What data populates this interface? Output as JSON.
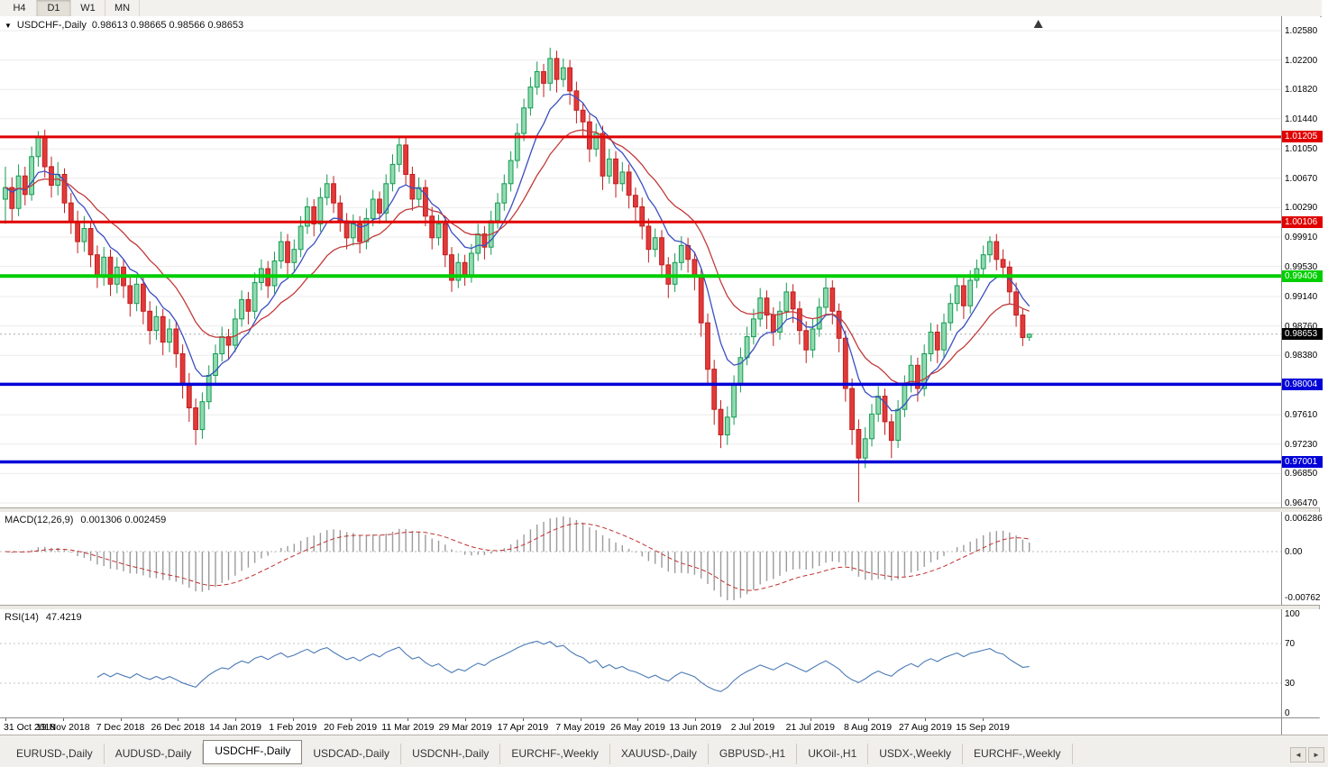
{
  "toolbar": {
    "timeframes": [
      "H4",
      "D1",
      "W1",
      "MN"
    ],
    "active": "D1"
  },
  "icons": {
    "dropdown": "▼",
    "tab_scroll_left": "◄",
    "tab_scroll_right": "►"
  },
  "tab_bar": {
    "items": [
      "EURUSD-,Daily",
      "AUDUSD-,Daily",
      "USDCHF-,Daily",
      "USDCAD-,Daily",
      "USDCNH-,Daily",
      "EURCHF-,Weekly",
      "XAUUSD-,Daily",
      "GBPUSD-,H1",
      "UKOil-,H1",
      "USDX-,Weekly",
      "EURCHF-,Weekly"
    ],
    "active_index": 2
  },
  "chart_data": {
    "type": "candlestick",
    "title": "USDCHF-,Daily",
    "symbol": "USDCHF-,Daily",
    "ohlc_text": "0.98613 0.98665 0.98566 0.98653",
    "current_price": "0.98653",
    "y_axis": {
      "min": 0.9647,
      "max": 1.0258,
      "ticks": [
        "1.02580",
        "1.02200",
        "1.01820",
        "1.01440",
        "1.01050",
        "1.00670",
        "1.00290",
        "0.99910",
        "0.99530",
        "0.99140",
        "0.98760",
        "0.98380",
        "0.97610",
        "0.97230",
        "0.96850",
        "0.96470"
      ]
    },
    "x_labels": [
      "31 Oct 2018",
      "19 Nov 2018",
      "7 Dec 2018",
      "26 Dec 2018",
      "14 Jan 2019",
      "1 Feb 2019",
      "20 Feb 2019",
      "11 Mar 2019",
      "29 Mar 2019",
      "17 Apr 2019",
      "7 May 2019",
      "26 May 2019",
      "13 Jun 2019",
      "2 Jul 2019",
      "21 Jul 2019",
      "8 Aug 2019",
      "27 Aug 2019",
      "15 Sep 2019"
    ],
    "hlines": [
      {
        "price": "1.01205",
        "color": "#e00000",
        "width": 3
      },
      {
        "price": "1.00106",
        "color": "#e00000",
        "width": 3
      },
      {
        "price": "0.99406",
        "color": "#00ce00",
        "width": 4
      },
      {
        "price": "0.98004",
        "color": "#0000d8",
        "width": 3.5
      },
      {
        "price": "0.97001",
        "color": "#0000d8",
        "width": 3.5
      }
    ],
    "colors": {
      "up_fill": "#90dab0",
      "up_stroke": "#149b52",
      "down_fill": "#e23a3a",
      "down_stroke": "#c21d1d",
      "ma_fast": "#3a4fc0",
      "ma_slow": "#c23a3a",
      "macd_hist": "#9b9b9b",
      "macd_signal": "#c03030",
      "rsi": "#4a7ab5"
    },
    "indicators": {
      "macd": {
        "label": "MACD(12,26,9)",
        "values_text": "0.001306 0.002459",
        "params": [
          12,
          26,
          9
        ],
        "axis": [
          "0.006286",
          "0.00",
          "-0.00762"
        ]
      },
      "rsi": {
        "label": "RSI(14)",
        "value_text": "47.4219",
        "period": 14,
        "axis": [
          "100",
          "70",
          "30",
          "0"
        ],
        "levels": [
          70,
          30
        ]
      }
    },
    "candles": [
      [
        1.004,
        1.0082,
        1.0008,
        1.0055
      ],
      [
        1.0055,
        1.0068,
        1.0012,
        1.0028
      ],
      [
        1.0028,
        1.0085,
        1.0018,
        1.007
      ],
      [
        1.007,
        1.0082,
        1.0032,
        1.0046
      ],
      [
        1.0046,
        1.0108,
        1.0038,
        1.0095
      ],
      [
        1.0095,
        1.0128,
        1.0082,
        1.012
      ],
      [
        1.012,
        1.013,
        1.0068,
        1.0082
      ],
      [
        1.0082,
        1.0095,
        1.0042,
        1.0058
      ],
      [
        1.0058,
        1.0088,
        1.0045,
        1.0072
      ],
      [
        1.0072,
        1.008,
        1.0022,
        1.0035
      ],
      [
        1.0035,
        1.0048,
        0.9995,
        1.001
      ],
      [
        1.001,
        1.0025,
        0.997,
        0.9985
      ],
      [
        0.9985,
        1.0018,
        0.9972,
        1.0002
      ],
      [
        1.0002,
        1.0012,
        0.9952,
        0.9968
      ],
      [
        0.9968,
        0.998,
        0.9925,
        0.994
      ],
      [
        0.994,
        0.9978,
        0.9928,
        0.9965
      ],
      [
        0.9965,
        0.9975,
        0.9915,
        0.993
      ],
      [
        0.993,
        0.9965,
        0.9918,
        0.9952
      ],
      [
        0.9952,
        0.9962,
        0.9912,
        0.9928
      ],
      [
        0.9928,
        0.994,
        0.9888,
        0.9905
      ],
      [
        0.9905,
        0.9942,
        0.9895,
        0.993
      ],
      [
        0.993,
        0.9941,
        0.9878,
        0.9895
      ],
      [
        0.9895,
        0.9908,
        0.9852,
        0.987
      ],
      [
        0.987,
        0.9902,
        0.9858,
        0.9888
      ],
      [
        0.9888,
        0.9898,
        0.9838,
        0.9855
      ],
      [
        0.9855,
        0.9885,
        0.9842,
        0.9872
      ],
      [
        0.9872,
        0.9882,
        0.9822,
        0.984
      ],
      [
        0.984,
        0.9852,
        0.9782,
        0.98
      ],
      [
        0.98,
        0.9815,
        0.9752,
        0.977
      ],
      [
        0.977,
        0.9782,
        0.9722,
        0.9742
      ],
      [
        0.9742,
        0.979,
        0.973,
        0.9778
      ],
      [
        0.9778,
        0.9825,
        0.9768,
        0.9812
      ],
      [
        0.9812,
        0.9852,
        0.98,
        0.984
      ],
      [
        0.984,
        0.9875,
        0.983,
        0.9862
      ],
      [
        0.9862,
        0.9872,
        0.9832,
        0.9851
      ],
      [
        0.9851,
        0.9898,
        0.9842,
        0.9885
      ],
      [
        0.9885,
        0.9922,
        0.9875,
        0.991
      ],
      [
        0.991,
        0.992,
        0.9878,
        0.9895
      ],
      [
        0.9895,
        0.9945,
        0.9885,
        0.9932
      ],
      [
        0.9932,
        0.9962,
        0.9922,
        0.995
      ],
      [
        0.995,
        0.996,
        0.9912,
        0.9928
      ],
      [
        0.9928,
        0.9972,
        0.9918,
        0.996
      ],
      [
        0.996,
        0.9998,
        0.995,
        0.9985
      ],
      [
        0.9985,
        0.9995,
        0.9942,
        0.9958
      ],
      [
        0.9958,
        0.9988,
        0.9945,
        0.9975
      ],
      [
        0.9975,
        1.0018,
        0.9965,
        1.0005
      ],
      [
        1.0005,
        1.0042,
        0.9995,
        1.003
      ],
      [
        1.003,
        1.004,
        0.9992,
        1.0008
      ],
      [
        1.0008,
        1.0055,
        0.9998,
        1.0042
      ],
      [
        1.0042,
        1.0072,
        1.0032,
        1.006
      ],
      [
        1.006,
        1.007,
        1.0022,
        1.0035
      ],
      [
        1.0035,
        1.0045,
        0.9998,
        1.0012
      ],
      [
        1.0012,
        1.0022,
        0.9975,
        0.999
      ],
      [
        0.999,
        1.002,
        0.998,
        1.0008
      ],
      [
        1.0008,
        1.0018,
        0.997,
        0.9985
      ],
      [
        0.9985,
        1.0028,
        0.9975,
        1.0015
      ],
      [
        1.0015,
        1.0052,
        1.0005,
        1.004
      ],
      [
        1.004,
        1.005,
        1.0008,
        1.0022
      ],
      [
        1.0022,
        1.0072,
        1.0012,
        1.006
      ],
      [
        1.006,
        1.0098,
        1.005,
        1.0085
      ],
      [
        1.0085,
        1.0122,
        1.0075,
        1.011
      ],
      [
        1.011,
        1.012,
        1.0058,
        1.0072
      ],
      [
        1.0072,
        1.0082,
        1.0025,
        1.004
      ],
      [
        1.004,
        1.0068,
        1.003,
        1.0055
      ],
      [
        1.0055,
        1.0065,
        1.0005,
        1.0018
      ],
      [
        1.0018,
        1.003,
        0.9975,
        0.999
      ],
      [
        0.999,
        1.002,
        0.998,
        1.0008
      ],
      [
        1.0008,
        1.0018,
        0.9952,
        0.9968
      ],
      [
        0.9968,
        0.9978,
        0.992,
        0.9935
      ],
      [
        0.9935,
        0.997,
        0.9925,
        0.9958
      ],
      [
        0.9958,
        0.9968,
        0.9928,
        0.9942
      ],
      [
        0.9942,
        0.9982,
        0.9932,
        0.997
      ],
      [
        0.997,
        1.0008,
        0.996,
        0.9995
      ],
      [
        0.9995,
        1.0005,
        0.9962,
        0.9978
      ],
      [
        0.9978,
        1.0025,
        0.9968,
        1.0012
      ],
      [
        1.0012,
        1.0048,
        1.0002,
        1.0035
      ],
      [
        1.0035,
        1.0072,
        1.0025,
        1.006
      ],
      [
        1.006,
        1.0102,
        1.005,
        1.009
      ],
      [
        1.009,
        1.0138,
        1.008,
        1.0125
      ],
      [
        1.0125,
        1.017,
        1.0115,
        1.0158
      ],
      [
        1.0158,
        1.0198,
        1.0148,
        1.0185
      ],
      [
        1.0185,
        1.0218,
        1.0175,
        1.0205
      ],
      [
        1.0205,
        1.0215,
        1.0172,
        1.019
      ],
      [
        1.019,
        1.0236,
        1.018,
        1.0222
      ],
      [
        1.0222,
        1.0232,
        1.0178,
        1.0195
      ],
      [
        1.0195,
        1.0222,
        1.0185,
        1.021
      ],
      [
        1.021,
        1.022,
        1.0162,
        1.018
      ],
      [
        1.018,
        1.0192,
        1.0138,
        1.0155
      ],
      [
        1.0155,
        1.0165,
        1.0122,
        1.014
      ],
      [
        1.014,
        1.015,
        1.0088,
        1.0105
      ],
      [
        1.0105,
        1.0138,
        1.0095,
        1.0125
      ],
      [
        1.0125,
        1.0135,
        1.0052,
        1.007
      ],
      [
        1.007,
        1.0105,
        1.006,
        1.0092
      ],
      [
        1.0092,
        1.0102,
        1.0042,
        1.006
      ],
      [
        1.006,
        1.0088,
        1.005,
        1.0075
      ],
      [
        1.0075,
        1.0085,
        1.0028,
        1.0045
      ],
      [
        1.0045,
        1.0055,
        1.0012,
        1.003
      ],
      [
        1.003,
        1.0042,
        0.9988,
        1.0005
      ],
      [
        1.0005,
        1.0015,
        0.9958,
        0.9975
      ],
      [
        0.9975,
        1.0002,
        0.9965,
        0.999
      ],
      [
        0.999,
        1.0,
        0.9938,
        0.9955
      ],
      [
        0.9955,
        0.9965,
        0.9912,
        0.993
      ],
      [
        0.993,
        0.997,
        0.992,
        0.9958
      ],
      [
        0.9958,
        0.9992,
        0.9948,
        0.998
      ],
      [
        0.998,
        0.999,
        0.9945,
        0.9962
      ],
      [
        0.9962,
        0.9972,
        0.9922,
        0.994
      ],
      [
        0.994,
        0.995,
        0.9862,
        0.988
      ],
      [
        0.988,
        0.9892,
        0.98,
        0.982
      ],
      [
        0.982,
        0.9832,
        0.9748,
        0.9768
      ],
      [
        0.9768,
        0.978,
        0.9718,
        0.9735
      ],
      [
        0.9735,
        0.9772,
        0.9722,
        0.9758
      ],
      [
        0.9758,
        0.9812,
        0.9748,
        0.98
      ],
      [
        0.98,
        0.9848,
        0.979,
        0.9835
      ],
      [
        0.9835,
        0.9875,
        0.9825,
        0.9862
      ],
      [
        0.9862,
        0.9898,
        0.9852,
        0.9885
      ],
      [
        0.9885,
        0.9925,
        0.9875,
        0.9912
      ],
      [
        0.9912,
        0.9922,
        0.9872,
        0.989
      ],
      [
        0.989,
        0.99,
        0.985,
        0.9868
      ],
      [
        0.9868,
        0.9908,
        0.9858,
        0.9895
      ],
      [
        0.9895,
        0.9932,
        0.9885,
        0.992
      ],
      [
        0.992,
        0.993,
        0.988,
        0.9898
      ],
      [
        0.9898,
        0.9908,
        0.9852,
        0.987
      ],
      [
        0.987,
        0.9882,
        0.9828,
        0.9845
      ],
      [
        0.9845,
        0.9885,
        0.9835,
        0.9872
      ],
      [
        0.9872,
        0.9912,
        0.9862,
        0.99
      ],
      [
        0.99,
        0.9938,
        0.989,
        0.9925
      ],
      [
        0.9925,
        0.9935,
        0.9878,
        0.9895
      ],
      [
        0.9895,
        0.9905,
        0.9842,
        0.986
      ],
      [
        0.986,
        0.987,
        0.9778,
        0.9795
      ],
      [
        0.9795,
        0.9808,
        0.9722,
        0.9742
      ],
      [
        0.9742,
        0.9755,
        0.9648,
        0.9705
      ],
      [
        0.9705,
        0.9745,
        0.9692,
        0.973
      ],
      [
        0.973,
        0.9775,
        0.972,
        0.9762
      ],
      [
        0.9762,
        0.9798,
        0.9752,
        0.9785
      ],
      [
        0.9785,
        0.9795,
        0.9735,
        0.9752
      ],
      [
        0.9752,
        0.9762,
        0.9705,
        0.9728
      ],
      [
        0.9728,
        0.978,
        0.9718,
        0.9768
      ],
      [
        0.9768,
        0.9812,
        0.9758,
        0.98
      ],
      [
        0.98,
        0.9838,
        0.979,
        0.9825
      ],
      [
        0.9825,
        0.9835,
        0.9778,
        0.9795
      ],
      [
        0.9795,
        0.9852,
        0.9785,
        0.984
      ],
      [
        0.984,
        0.988,
        0.983,
        0.9868
      ],
      [
        0.9868,
        0.9878,
        0.9828,
        0.9845
      ],
      [
        0.9845,
        0.9892,
        0.9835,
        0.988
      ],
      [
        0.988,
        0.9918,
        0.987,
        0.9905
      ],
      [
        0.9905,
        0.994,
        0.9895,
        0.9928
      ],
      [
        0.9928,
        0.9938,
        0.9885,
        0.9902
      ],
      [
        0.9902,
        0.9948,
        0.9892,
        0.9935
      ],
      [
        0.9935,
        0.9962,
        0.9925,
        0.995
      ],
      [
        0.995,
        0.998,
        0.994,
        0.9968
      ],
      [
        0.9968,
        0.9992,
        0.9958,
        0.9985
      ],
      [
        0.9985,
        0.9995,
        0.9948,
        0.9962
      ],
      [
        0.9962,
        0.9975,
        0.9938,
        0.9952
      ],
      [
        0.9952,
        0.996,
        0.9905,
        0.992
      ],
      [
        0.992,
        0.9932,
        0.9875,
        0.989
      ],
      [
        0.989,
        0.9898,
        0.985,
        0.9861
      ],
      [
        0.98613,
        0.98665,
        0.98566,
        0.98653
      ]
    ]
  }
}
